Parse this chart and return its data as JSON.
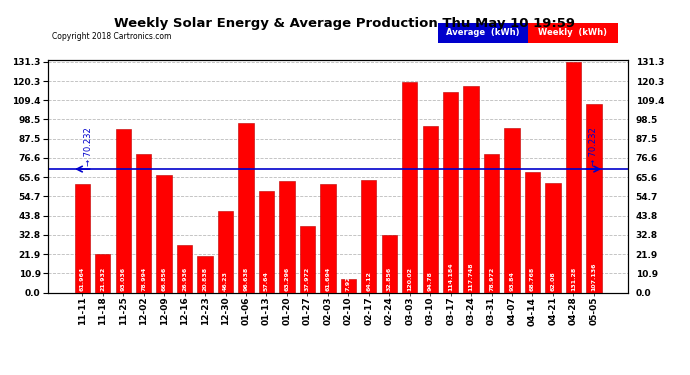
{
  "title": "Weekly Solar Energy & Average Production Thu May 10 19:59",
  "copyright": "Copyright 2018 Cartronics.com",
  "average_value": 70.232,
  "categories": [
    "11-11",
    "11-18",
    "11-25",
    "12-02",
    "12-09",
    "12-16",
    "12-23",
    "12-30",
    "01-06",
    "01-13",
    "01-20",
    "01-27",
    "02-03",
    "02-10",
    "02-17",
    "02-24",
    "03-03",
    "03-10",
    "03-17",
    "03-24",
    "03-31",
    "04-07",
    "04-14",
    "04-21",
    "04-28",
    "05-05"
  ],
  "values": [
    61.964,
    21.932,
    93.036,
    78.994,
    66.856,
    26.936,
    20.838,
    46.23,
    96.638,
    57.64,
    63.296,
    37.972,
    61.694,
    7.926,
    64.12,
    32.856,
    120.02,
    94.78,
    114.184,
    117.748,
    78.972,
    93.84,
    68.768,
    62.08,
    131.28,
    107.136
  ],
  "bar_color": "#ff0000",
  "bar_edge_color": "#bb0000",
  "avg_line_color": "#0000cc",
  "background_color": "#ffffff",
  "plot_bg_color": "#ffffff",
  "grid_color": "#bbbbbb",
  "yticks": [
    0.0,
    10.9,
    21.9,
    32.8,
    43.8,
    54.7,
    65.6,
    76.6,
    87.5,
    98.5,
    109.4,
    120.3,
    131.3
  ],
  "ymax": 131.3,
  "ymin": 0.0,
  "legend_avg_color": "#0000cc",
  "legend_weekly_color": "#ff0000",
  "legend_avg_label": "Average  (kWh)",
  "legend_weekly_label": "Weekly  (kWh)"
}
